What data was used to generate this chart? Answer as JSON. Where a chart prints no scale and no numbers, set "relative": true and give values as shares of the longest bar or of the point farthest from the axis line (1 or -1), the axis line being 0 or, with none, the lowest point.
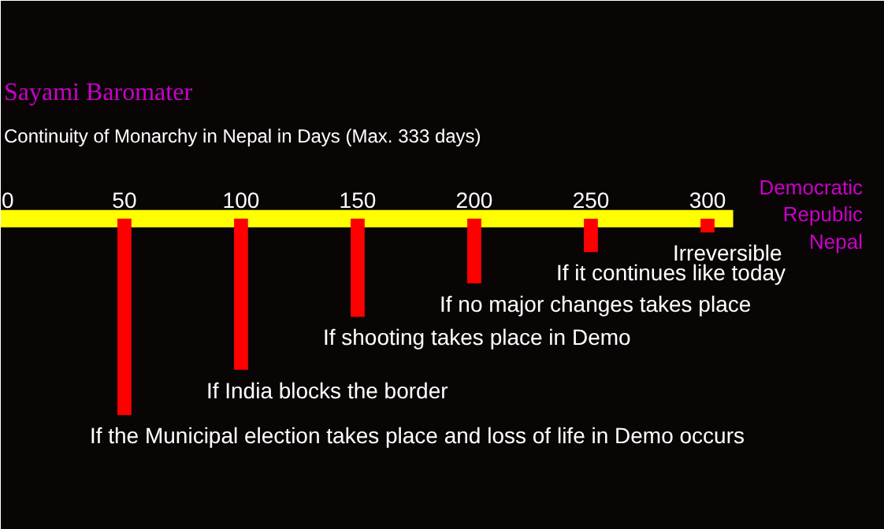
{
  "chart_data": {
    "type": "bar",
    "title": "Sayami Baromater",
    "subtitle": "Continuity of Monarchy in Nepal in Days (Max. 333 days)",
    "relative": true,
    "color": "#ff0000",
    "x": [
      50,
      100,
      150,
      200,
      250,
      300
    ],
    "values": [
      -1,
      -0.77,
      -0.5,
      -0.33,
      -0.17,
      -0.07
    ],
    "xlim": [
      -3,
      376
    ],
    "xticks": [
      0,
      50,
      100,
      150,
      200,
      250,
      300
    ],
    "grid": false,
    "annotations": [
      {
        "text": "If the Municipal election takes place and loss of life in Demo occurs",
        "x": 50,
        "y": -1
      },
      {
        "text": "If India blocks the border",
        "x": 100,
        "y": -0.77
      },
      {
        "text": "If shooting takes place in Demo",
        "x": 150,
        "y": -0.5
      },
      {
        "text": "If no major changes takes place",
        "x": 200,
        "y": -0.33
      },
      {
        "text": "If it continues like today",
        "x": 250,
        "y": -0.17
      },
      {
        "text": "Irreversible",
        "x": 300,
        "y": -0.07
      },
      "Democratic\nRepublic\nNepal"
    ]
  }
}
